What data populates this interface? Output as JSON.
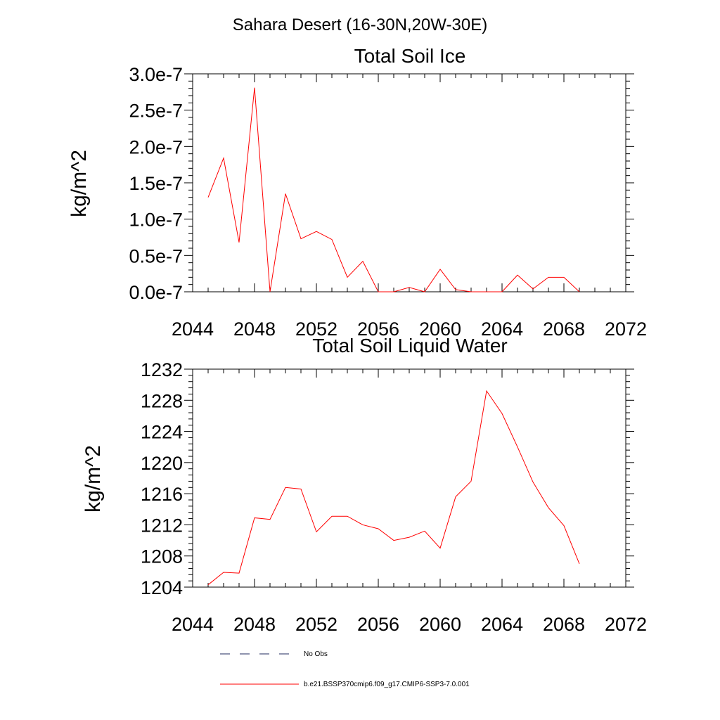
{
  "figure": {
    "title": "Sahara Desert (16-30N,20W-30E)"
  },
  "chart_data": [
    {
      "type": "line",
      "title": "Total Soil Ice",
      "xlabel": "",
      "ylabel": "kg/m^2",
      "xlim": [
        2044,
        2072
      ],
      "ylim": [
        0.0,
        3e-07
      ],
      "x_ticks": [
        2044,
        2048,
        2052,
        2056,
        2060,
        2064,
        2068,
        2072
      ],
      "x_tick_labels": [
        "2044",
        "2048",
        "2052",
        "2056",
        "2060",
        "2064",
        "2068",
        "2072"
      ],
      "y_ticks": [
        0.0,
        5e-08,
        1e-07,
        1.5e-07,
        2e-07,
        2.5e-07,
        3e-07
      ],
      "y_tick_labels": [
        "0.0e-7",
        "0.5e-7",
        "1.0e-7",
        "1.5e-7",
        "2.0e-7",
        "2.5e-7",
        "3.0e-7"
      ],
      "grid": false,
      "series": [
        {
          "name": "b.e21.BSSP370cmip6.f09_g17.CMIP6-SSP3-7.0.001",
          "color": "#ff0000",
          "x": [
            2045,
            2046,
            2047,
            2048,
            2049,
            2050,
            2051,
            2052,
            2053,
            2054,
            2055,
            2056,
            2057,
            2058,
            2059,
            2060,
            2061,
            2062,
            2063,
            2064,
            2065,
            2066,
            2067,
            2068,
            2069
          ],
          "y": [
            1.3e-07,
            1.84e-07,
            6.8e-08,
            2.81e-07,
            0.0,
            1.35e-07,
            7.3e-08,
            8.3e-08,
            7.2e-08,
            2e-08,
            4.2e-08,
            0.0,
            0.0,
            6e-09,
            0.0,
            3.1e-08,
            3e-09,
            0.0,
            0.0,
            0.0,
            2.3e-08,
            4e-09,
            2e-08,
            2e-08,
            0.0
          ]
        }
      ]
    },
    {
      "type": "line",
      "title": "Total Soil Liquid Water",
      "xlabel": "",
      "ylabel": "kg/m^2",
      "xlim": [
        2044,
        2072
      ],
      "ylim": [
        1204,
        1232
      ],
      "x_ticks": [
        2044,
        2048,
        2052,
        2056,
        2060,
        2064,
        2068,
        2072
      ],
      "x_tick_labels": [
        "2044",
        "2048",
        "2052",
        "2056",
        "2060",
        "2064",
        "2068",
        "2072"
      ],
      "y_ticks": [
        1204,
        1208,
        1212,
        1216,
        1220,
        1224,
        1228,
        1232
      ],
      "y_tick_labels": [
        "1204",
        "1208",
        "1212",
        "1216",
        "1220",
        "1224",
        "1228",
        "1232"
      ],
      "grid": false,
      "series": [
        {
          "name": "b.e21.BSSP370cmip6.f09_g17.CMIP6-SSP3-7.0.001",
          "color": "#ff0000",
          "x": [
            2045,
            2046,
            2047,
            2048,
            2049,
            2050,
            2051,
            2052,
            2053,
            2054,
            2055,
            2056,
            2057,
            2058,
            2059,
            2060,
            2061,
            2062,
            2063,
            2064,
            2065,
            2066,
            2067,
            2068,
            2069
          ],
          "y": [
            1204.3,
            1205.9,
            1205.8,
            1212.9,
            1212.7,
            1216.8,
            1216.6,
            1211.1,
            1213.1,
            1213.1,
            1212.0,
            1211.5,
            1210.0,
            1210.4,
            1211.2,
            1209.0,
            1215.6,
            1217.6,
            1229.2,
            1226.3,
            1222.0,
            1217.5,
            1214.2,
            1211.9,
            1207.0
          ]
        }
      ]
    }
  ],
  "legend": {
    "items": [
      {
        "label": "No Obs",
        "style": "dashed",
        "color": "#1f2a5c"
      },
      {
        "label": "b.e21.BSSP370cmip6.f09_g17.CMIP6-SSP3-7.0.001",
        "style": "solid",
        "color": "#ff0000"
      }
    ]
  }
}
